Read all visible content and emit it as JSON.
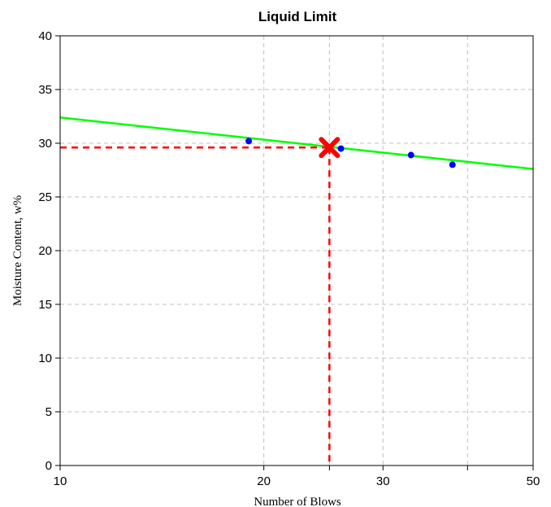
{
  "chart_data": {
    "type": "scatter",
    "title": "Liquid Limit",
    "xlabel": "Number of Blows",
    "ylabel": "Moisture Content, w%",
    "x_scale": "log",
    "xlim": [
      10,
      50
    ],
    "ylim": [
      0,
      40
    ],
    "x_ticks": [
      10,
      20,
      30,
      50
    ],
    "x_ticks_labeled": [
      "10",
      "20",
      "30",
      "50"
    ],
    "x_grid": [
      20,
      25,
      30,
      40
    ],
    "y_ticks": [
      0,
      5,
      10,
      15,
      20,
      25,
      30,
      35,
      40
    ],
    "y_tick_labels": [
      "0",
      "5",
      "10",
      "15",
      "20",
      "25",
      "30",
      "35",
      "40"
    ],
    "grid": true,
    "points": [
      {
        "x": 19,
        "y": 30.2
      },
      {
        "x": 26,
        "y": 29.5
      },
      {
        "x": 33,
        "y": 28.9
      },
      {
        "x": 38,
        "y": 28.0
      }
    ],
    "fit_line": {
      "x": [
        10,
        50
      ],
      "y": [
        32.4,
        27.6
      ]
    },
    "liquid_limit_marker": {
      "x": 25,
      "y": 29.6
    },
    "colors": {
      "points": "#0000ff",
      "fit_line": "#00ff00",
      "marker": "#ff0000",
      "grid": "#c0c0c0"
    }
  }
}
